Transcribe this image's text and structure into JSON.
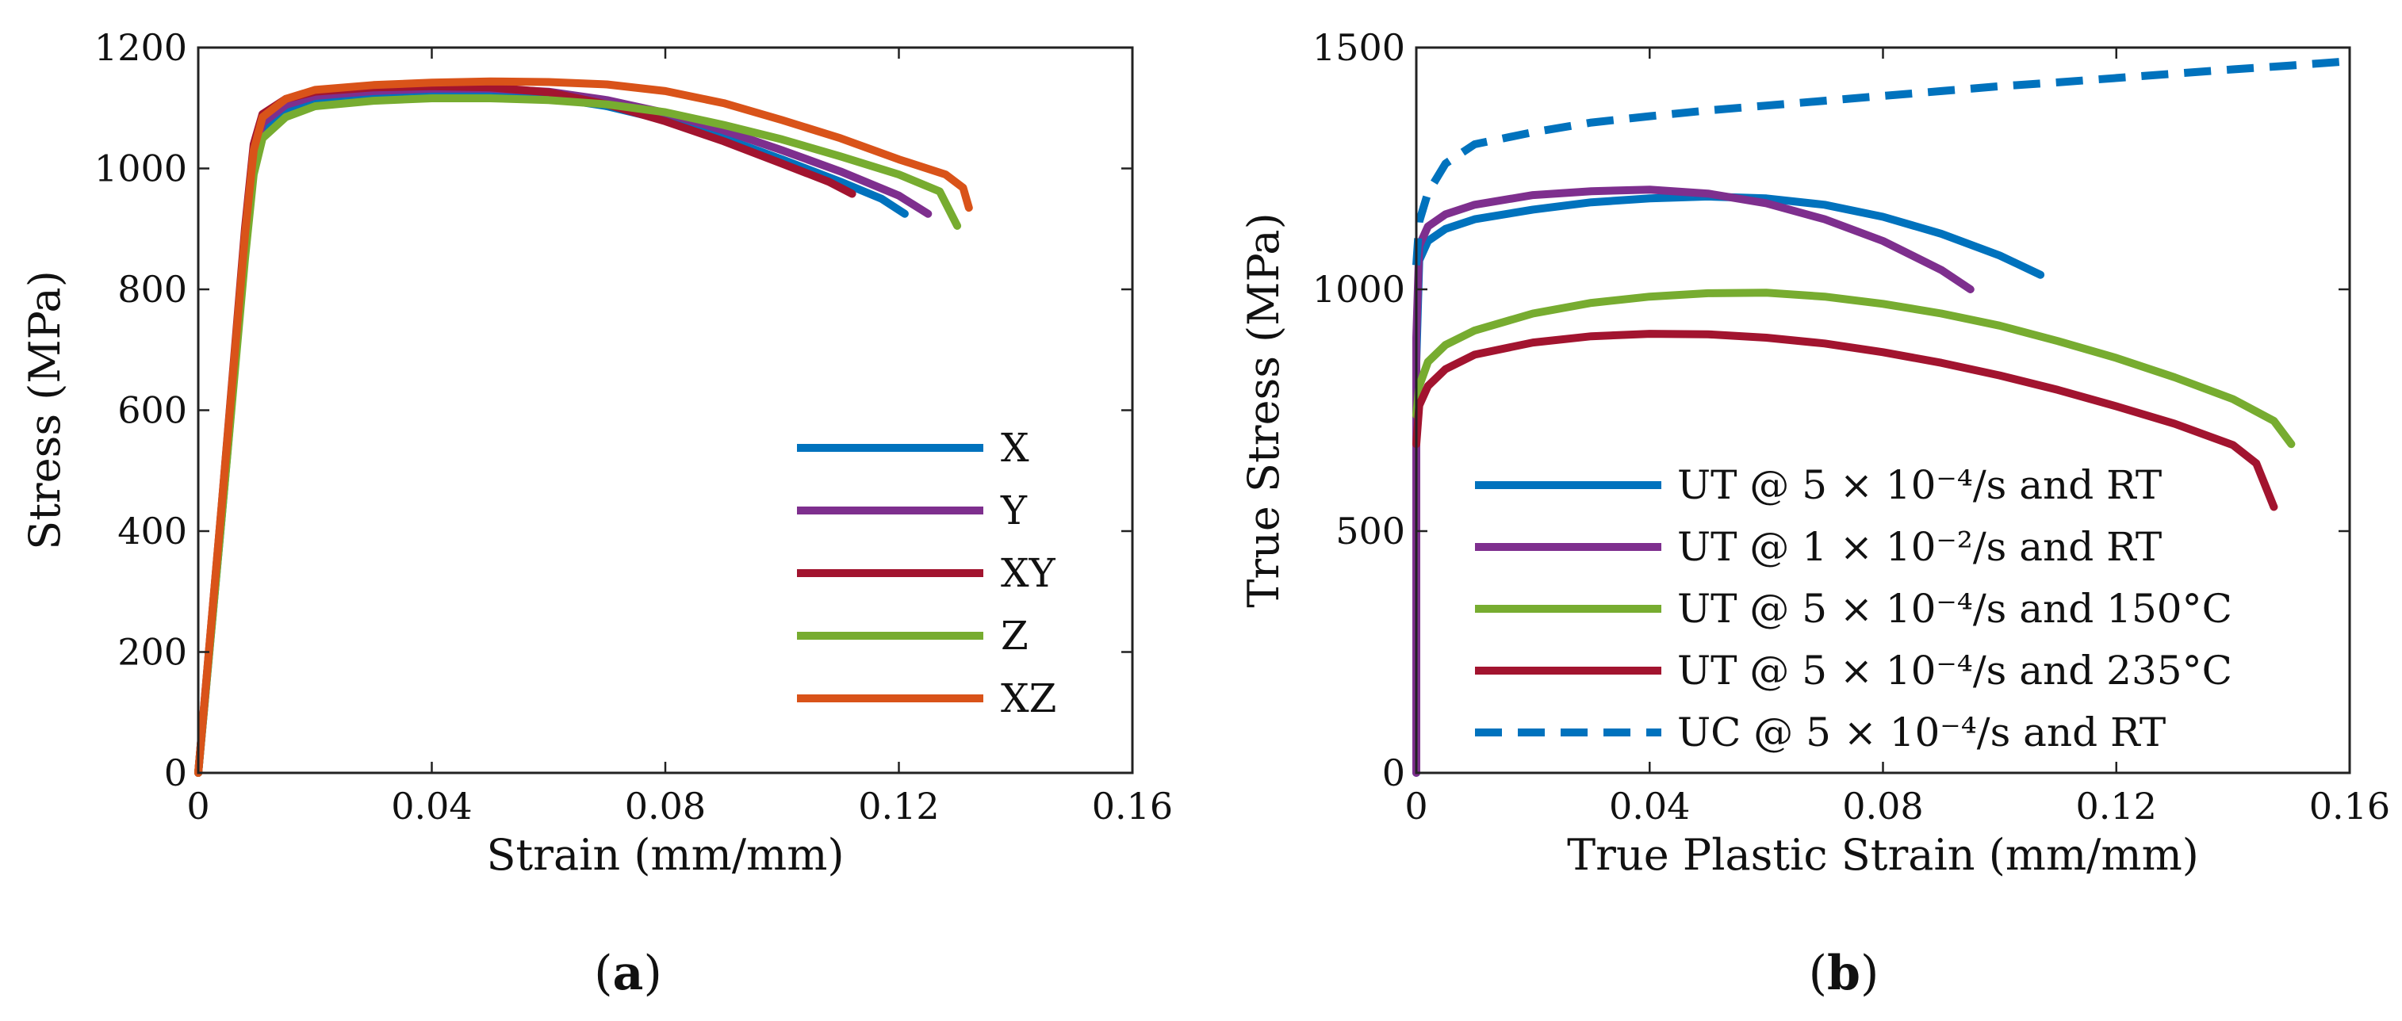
{
  "chart_data": [
    {
      "type": "line",
      "panel_label": "a",
      "title": "",
      "xlabel": "Strain (mm/mm)",
      "ylabel": "Stress (MPa)",
      "xlim": [
        0,
        0.16
      ],
      "ylim": [
        0,
        1200
      ],
      "xticks": [
        0,
        0.04,
        0.08,
        0.12,
        0.16
      ],
      "xtick_labels": [
        "0",
        "0.04",
        "0.08",
        "0.12",
        "0.16"
      ],
      "yticks": [
        0,
        200,
        400,
        600,
        800,
        1000,
        1200
      ],
      "ytick_labels": [
        "0",
        "200",
        "400",
        "600",
        "800",
        "1000",
        "1200"
      ],
      "grid": false,
      "legend_position": "bottom-right",
      "series": [
        {
          "name": "X",
          "color": "#0072BD",
          "dash": "solid",
          "x": [
            0,
            0.004,
            0.008,
            0.0095,
            0.011,
            0.015,
            0.02,
            0.03,
            0.04,
            0.05,
            0.06,
            0.07,
            0.08,
            0.09,
            0.1,
            0.11,
            0.117,
            0.121
          ],
          "y": [
            0,
            420,
            860,
            1000,
            1060,
            1095,
            1112,
            1122,
            1125,
            1124,
            1118,
            1103,
            1080,
            1050,
            1015,
            978,
            950,
            925
          ]
        },
        {
          "name": "Y",
          "color": "#7E2F8E",
          "dash": "solid",
          "x": [
            0,
            0.004,
            0.008,
            0.0095,
            0.011,
            0.015,
            0.02,
            0.03,
            0.04,
            0.05,
            0.06,
            0.07,
            0.08,
            0.09,
            0.1,
            0.11,
            0.12,
            0.125
          ],
          "y": [
            0,
            430,
            880,
            1020,
            1075,
            1105,
            1120,
            1128,
            1132,
            1132,
            1127,
            1113,
            1092,
            1063,
            1030,
            995,
            955,
            925
          ]
        },
        {
          "name": "XY",
          "color": "#A2142F",
          "dash": "solid",
          "x": [
            0,
            0.004,
            0.008,
            0.0095,
            0.011,
            0.015,
            0.02,
            0.03,
            0.04,
            0.05,
            0.06,
            0.07,
            0.08,
            0.09,
            0.1,
            0.108,
            0.112
          ],
          "y": [
            0,
            440,
            900,
            1040,
            1090,
            1115,
            1127,
            1134,
            1136,
            1134,
            1126,
            1106,
            1078,
            1045,
            1008,
            978,
            958
          ]
        },
        {
          "name": "Z",
          "color": "#77AC30",
          "dash": "solid",
          "x": [
            0,
            0.004,
            0.008,
            0.0095,
            0.011,
            0.015,
            0.02,
            0.03,
            0.04,
            0.05,
            0.06,
            0.07,
            0.08,
            0.09,
            0.1,
            0.11,
            0.12,
            0.127,
            0.13
          ],
          "y": [
            0,
            420,
            850,
            990,
            1050,
            1085,
            1103,
            1112,
            1116,
            1116,
            1113,
            1106,
            1093,
            1072,
            1048,
            1020,
            990,
            962,
            905
          ]
        },
        {
          "name": "XZ",
          "color": "#D95319",
          "dash": "solid",
          "x": [
            0,
            0.004,
            0.008,
            0.0095,
            0.011,
            0.015,
            0.02,
            0.03,
            0.04,
            0.05,
            0.06,
            0.07,
            0.08,
            0.09,
            0.1,
            0.11,
            0.12,
            0.128,
            0.131,
            0.132
          ],
          "y": [
            0,
            440,
            890,
            1030,
            1085,
            1115,
            1130,
            1138,
            1142,
            1144,
            1143,
            1139,
            1128,
            1108,
            1080,
            1050,
            1015,
            990,
            968,
            935
          ]
        }
      ]
    },
    {
      "type": "line",
      "panel_label": "b",
      "title": "",
      "xlabel": "True Plastic Strain (mm/mm)",
      "ylabel": "True Stress (MPa)",
      "xlim": [
        0,
        0.16
      ],
      "ylim": [
        0,
        1500
      ],
      "xticks": [
        0,
        0.04,
        0.08,
        0.12,
        0.16
      ],
      "xtick_labels": [
        "0",
        "0.04",
        "0.08",
        "0.12",
        "0.16"
      ],
      "yticks": [
        0,
        500,
        1000,
        1500
      ],
      "ytick_labels": [
        "0",
        "500",
        "1000",
        "1500"
      ],
      "grid": false,
      "legend_position": "bottom-left",
      "series": [
        {
          "name": "UT @ 5 × 10⁻⁴/s and RT",
          "color": "#0072BD",
          "dash": "solid",
          "x": [
            0,
            0,
            0.0005,
            0.002,
            0.005,
            0.01,
            0.02,
            0.03,
            0.04,
            0.05,
            0.06,
            0.07,
            0.08,
            0.09,
            0.1,
            0.107
          ],
          "y": [
            0,
            850,
            1060,
            1100,
            1125,
            1145,
            1165,
            1180,
            1188,
            1192,
            1188,
            1175,
            1150,
            1115,
            1070,
            1030
          ]
        },
        {
          "name": "UT @ 1 × 10⁻²/s and RT",
          "color": "#7E2F8E",
          "dash": "solid",
          "x": [
            0,
            0,
            0.0005,
            0.002,
            0.005,
            0.01,
            0.02,
            0.03,
            0.04,
            0.05,
            0.06,
            0.07,
            0.08,
            0.09,
            0.095
          ],
          "y": [
            0,
            900,
            1090,
            1130,
            1155,
            1175,
            1195,
            1203,
            1206,
            1198,
            1178,
            1145,
            1100,
            1040,
            1000
          ]
        },
        {
          "name": "UT @ 5 × 10⁻⁴/s and 150°C",
          "color": "#77AC30",
          "dash": "solid",
          "x": [
            0,
            0.0005,
            0.002,
            0.005,
            0.01,
            0.02,
            0.03,
            0.04,
            0.05,
            0.06,
            0.07,
            0.08,
            0.09,
            0.1,
            0.11,
            0.12,
            0.13,
            0.14,
            0.147,
            0.15
          ],
          "y": [
            740,
            800,
            850,
            885,
            915,
            950,
            972,
            985,
            992,
            993,
            985,
            970,
            950,
            925,
            893,
            858,
            818,
            773,
            728,
            680
          ]
        },
        {
          "name": "UT @ 5 × 10⁻⁴/s and 235°C",
          "color": "#A2142F",
          "dash": "solid",
          "x": [
            0,
            0.0005,
            0.002,
            0.005,
            0.01,
            0.02,
            0.03,
            0.04,
            0.05,
            0.06,
            0.07,
            0.08,
            0.09,
            0.1,
            0.11,
            0.12,
            0.13,
            0.14,
            0.144,
            0.147
          ],
          "y": [
            680,
            760,
            800,
            835,
            865,
            890,
            903,
            908,
            907,
            900,
            888,
            870,
            848,
            822,
            792,
            758,
            722,
            678,
            640,
            550
          ]
        },
        {
          "name": "UC @ 5 × 10⁻⁴/s and RT",
          "color": "#0072BD",
          "dash": "dashed",
          "x": [
            0,
            0.0005,
            0.002,
            0.005,
            0.01,
            0.02,
            0.03,
            0.04,
            0.05,
            0.06,
            0.07,
            0.08,
            0.09,
            0.1,
            0.11,
            0.12,
            0.13,
            0.14,
            0.15,
            0.16
          ],
          "y": [
            1050,
            1140,
            1200,
            1260,
            1300,
            1325,
            1345,
            1358,
            1370,
            1380,
            1390,
            1400,
            1410,
            1420,
            1428,
            1437,
            1446,
            1455,
            1463,
            1472
          ]
        }
      ]
    }
  ],
  "captions": {
    "a": {
      "open": "(",
      "letter": "a",
      "close": ")"
    },
    "b": {
      "open": "(",
      "letter": "b",
      "close": ")"
    }
  }
}
